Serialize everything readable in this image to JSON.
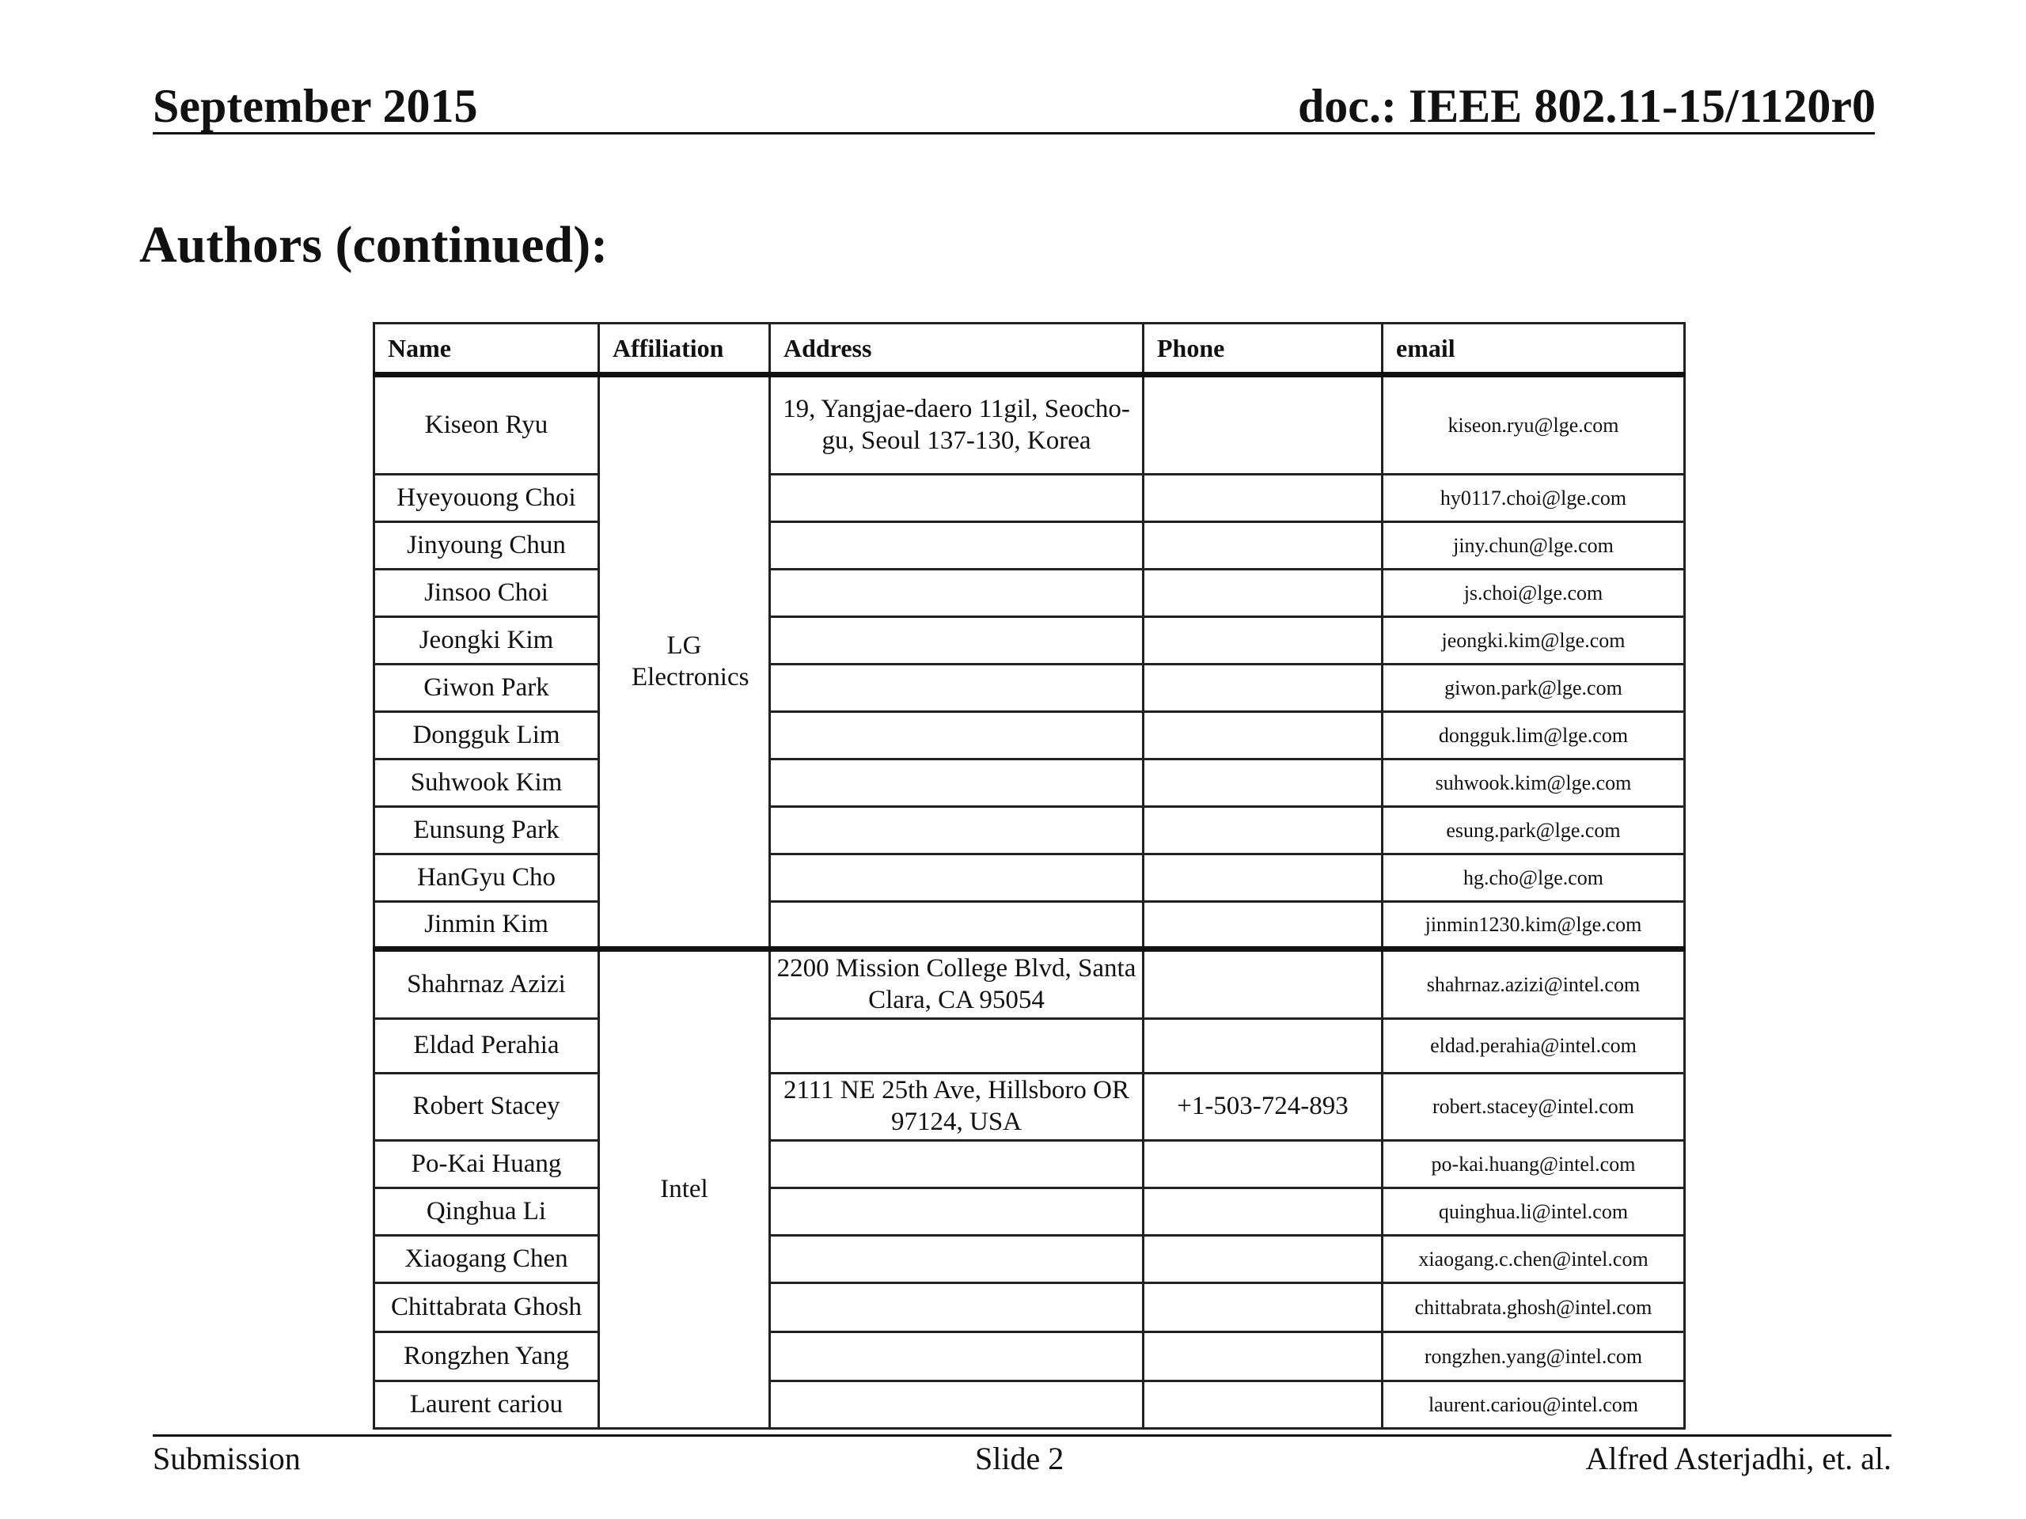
{
  "header": {
    "date": "September 2015",
    "doc": "doc.: IEEE 802.11-15/1120r0"
  },
  "title": "Authors (continued):",
  "table": {
    "columns": [
      "Name",
      "Affiliation",
      "Address",
      "Phone",
      "email"
    ],
    "groups": [
      {
        "affiliation": "LG Electronics",
        "rows": [
          {
            "name": "Kiseon Ryu",
            "address": "19, Yangjae-daero 11gil, Seocho-gu, Seoul 137-130, Korea",
            "phone": "",
            "email": "kiseon.ryu@lge.com"
          },
          {
            "name": "Hyeyouong Choi",
            "address": "",
            "phone": "",
            "email": "hy0117.choi@lge.com"
          },
          {
            "name": "Jinyoung Chun",
            "address": "",
            "phone": "",
            "email": "jiny.chun@lge.com"
          },
          {
            "name": "Jinsoo Choi",
            "address": "",
            "phone": "",
            "email": "js.choi@lge.com"
          },
          {
            "name": "Jeongki Kim",
            "address": "",
            "phone": "",
            "email": "jeongki.kim@lge.com"
          },
          {
            "name": "Giwon Park",
            "address": "",
            "phone": "",
            "email": "giwon.park@lge.com"
          },
          {
            "name": "Dongguk Lim",
            "address": "",
            "phone": "",
            "email": "dongguk.lim@lge.com"
          },
          {
            "name": "Suhwook Kim",
            "address": "",
            "phone": "",
            "email": "suhwook.kim@lge.com"
          },
          {
            "name": "Eunsung Park",
            "address": "",
            "phone": "",
            "email": "esung.park@lge.com"
          },
          {
            "name": "HanGyu Cho",
            "address": "",
            "phone": "",
            "email": "hg.cho@lge.com"
          },
          {
            "name": "Jinmin Kim",
            "address": "",
            "phone": "",
            "email": "jinmin1230.kim@lge.com"
          }
        ]
      },
      {
        "affiliation": "Intel",
        "rows": [
          {
            "name": "Shahrnaz Azizi",
            "address": "2200 Mission College Blvd, Santa Clara,  CA  95054",
            "phone": "",
            "email": "shahrnaz.azizi@intel.com"
          },
          {
            "name": "Eldad Perahia",
            "address": "",
            "phone": "",
            "email": "eldad.perahia@intel.com"
          },
          {
            "name": "Robert Stacey",
            "address": "2111 NE 25th Ave, Hillsboro OR 97124, USA",
            "phone": "+1-503-724-893",
            "email": "robert.stacey@intel.com"
          },
          {
            "name": "Po-Kai Huang",
            "address": "",
            "phone": "",
            "email": "po-kai.huang@intel.com"
          },
          {
            "name": "Qinghua Li",
            "address": "",
            "phone": "",
            "email": "quinghua.li@intel.com"
          },
          {
            "name": "Xiaogang Chen",
            "address": "",
            "phone": "",
            "email": "xiaogang.c.chen@intel.com"
          },
          {
            "name": "Chittabrata Ghosh",
            "address": "",
            "phone": "",
            "email": "chittabrata.ghosh@intel.com"
          },
          {
            "name": "Rongzhen Yang",
            "address": "",
            "phone": "",
            "email": "rongzhen.yang@intel.com"
          },
          {
            "name": "Laurent cariou",
            "address": "",
            "phone": "",
            "email": "laurent.cariou@intel.com"
          }
        ]
      }
    ]
  },
  "footer": {
    "left": "Submission",
    "center": "Slide 2",
    "right": "Alfred Asterjadhi, et. al."
  }
}
